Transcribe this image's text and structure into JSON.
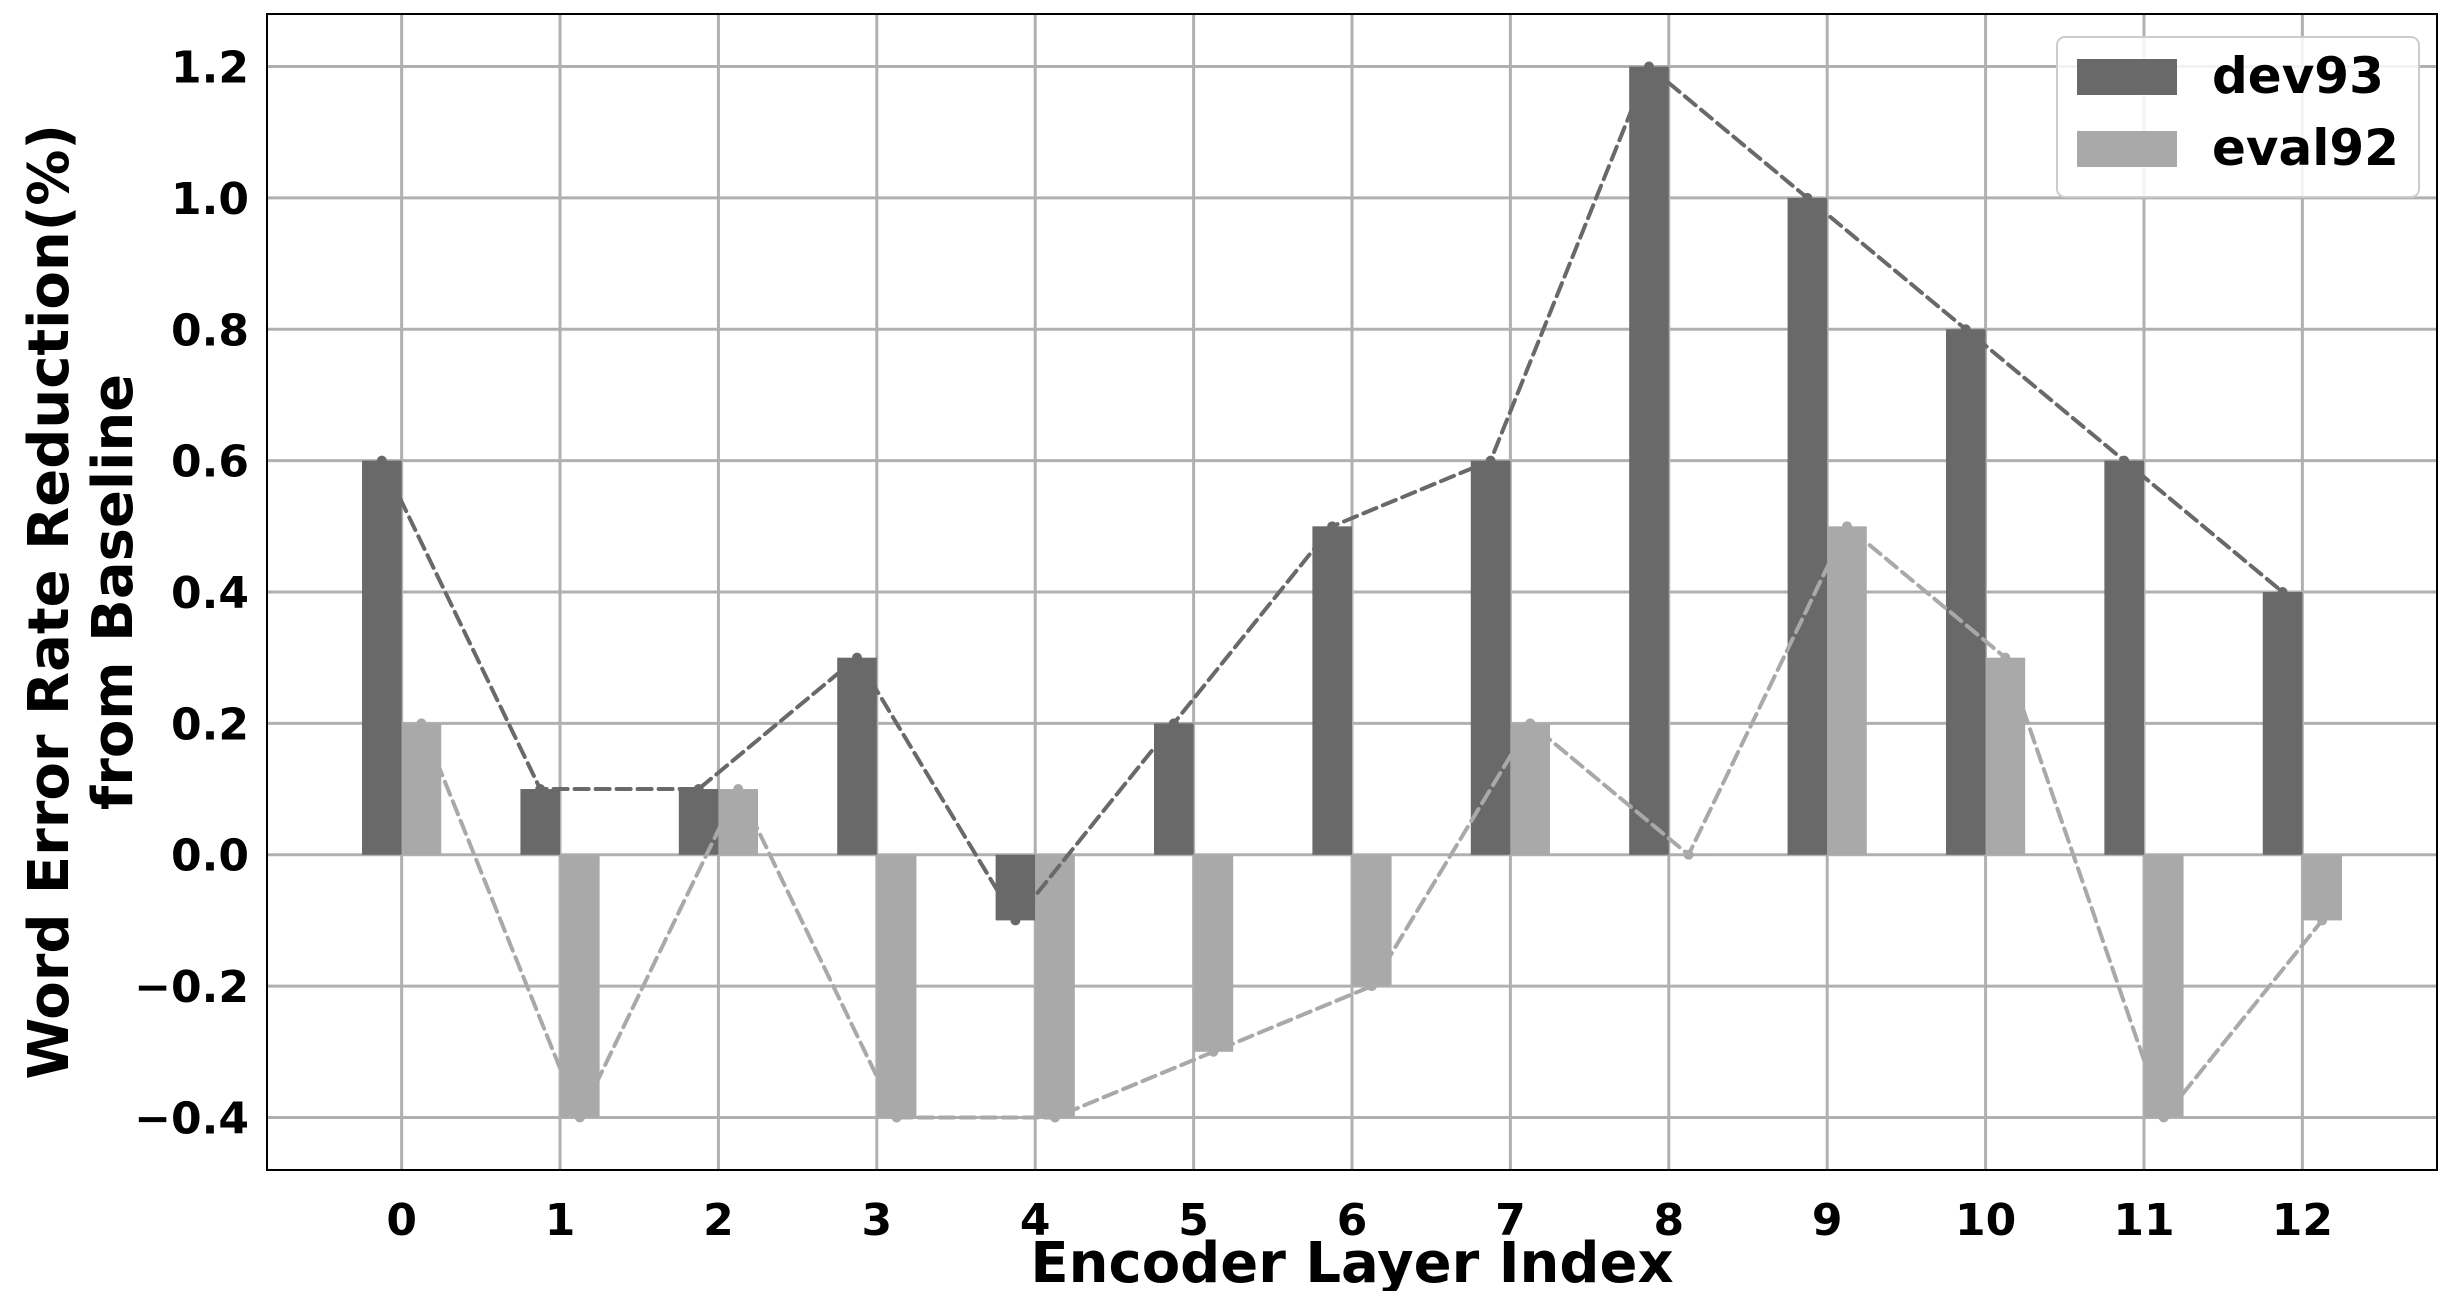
{
  "chart_data": {
    "type": "bar",
    "xlabel": "Encoder Layer Index",
    "ylabel_lines": [
      "Word Error Rate Reduction(%)",
      "from Baseline"
    ],
    "categories": [
      "0",
      "1",
      "2",
      "3",
      "4",
      "5",
      "6",
      "7",
      "8",
      "9",
      "10",
      "11",
      "12"
    ],
    "series": [
      {
        "name": "dev93",
        "color": "#696969",
        "values": [
          0.6,
          0.1,
          0.1,
          0.3,
          -0.1,
          0.2,
          0.5,
          0.6,
          1.2,
          1.0,
          0.8,
          0.6,
          0.4
        ]
      },
      {
        "name": "eval92",
        "color": "#a9a9a9",
        "values": [
          0.2,
          -0.4,
          0.1,
          -0.4,
          -0.4,
          -0.3,
          -0.2,
          0.2,
          0.0,
          0.5,
          0.3,
          -0.4,
          -0.1
        ]
      }
    ],
    "yticks": [
      -0.4,
      -0.2,
      0.0,
      0.2,
      0.4,
      0.6,
      0.8,
      1.0,
      1.2
    ],
    "ytick_labels": [
      "−0.4",
      "−0.2",
      "0.0",
      "0.2",
      "0.4",
      "0.6",
      "0.8",
      "1.0",
      "1.2"
    ],
    "ylim": [
      -0.48,
      1.28
    ],
    "xlim": [
      -0.85,
      12.85
    ],
    "dashed_trend_lines": true,
    "grid": true,
    "legend_position": "top-right"
  }
}
